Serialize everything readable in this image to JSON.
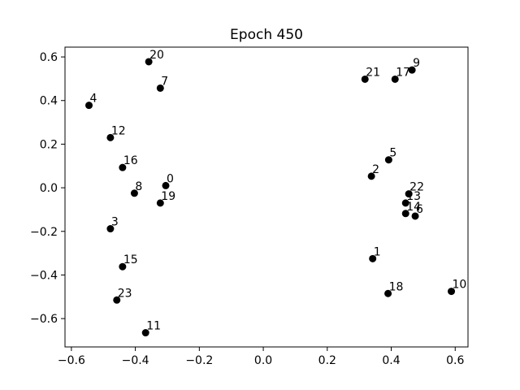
{
  "chart_data": {
    "type": "scatter",
    "title": "Epoch 450",
    "xlabel": "",
    "ylabel": "",
    "xlim": [
      -0.62,
      0.64
    ],
    "ylim": [
      -0.73,
      0.645
    ],
    "x_ticks": [
      -0.6,
      -0.4,
      -0.2,
      0.0,
      0.2,
      0.4,
      0.6
    ],
    "x_tick_labels": [
      "−0.6",
      "−0.4",
      "−0.2",
      "0.0",
      "0.2",
      "0.4",
      "0.6"
    ],
    "y_ticks": [
      -0.6,
      -0.4,
      -0.2,
      0.0,
      0.2,
      0.4,
      0.6
    ],
    "y_tick_labels": [
      "−0.6",
      "−0.4",
      "−0.2",
      "0.0",
      "0.2",
      "0.4",
      "0.6"
    ],
    "grid": false,
    "marker_color": "#000000",
    "points": [
      {
        "label": "0",
        "x": -0.305,
        "y": 0.01
      },
      {
        "label": "1",
        "x": 0.342,
        "y": -0.325
      },
      {
        "label": "2",
        "x": 0.338,
        "y": 0.053
      },
      {
        "label": "3",
        "x": -0.478,
        "y": -0.188
      },
      {
        "label": "4",
        "x": -0.545,
        "y": 0.378
      },
      {
        "label": "5",
        "x": 0.392,
        "y": 0.128
      },
      {
        "label": "6",
        "x": 0.475,
        "y": -0.13
      },
      {
        "label": "7",
        "x": -0.322,
        "y": 0.457
      },
      {
        "label": "8",
        "x": -0.403,
        "y": -0.025
      },
      {
        "label": "9",
        "x": 0.465,
        "y": 0.54
      },
      {
        "label": "10",
        "x": 0.588,
        "y": -0.475
      },
      {
        "label": "11",
        "x": -0.368,
        "y": -0.665
      },
      {
        "label": "12",
        "x": -0.478,
        "y": 0.23
      },
      {
        "label": "13",
        "x": 0.445,
        "y": -0.07
      },
      {
        "label": "14",
        "x": 0.445,
        "y": -0.118
      },
      {
        "label": "15",
        "x": -0.44,
        "y": -0.362
      },
      {
        "label": "16",
        "x": -0.44,
        "y": 0.093
      },
      {
        "label": "17",
        "x": 0.412,
        "y": 0.498
      },
      {
        "label": "18",
        "x": 0.39,
        "y": -0.485
      },
      {
        "label": "19",
        "x": -0.322,
        "y": -0.07
      },
      {
        "label": "20",
        "x": -0.358,
        "y": 0.578
      },
      {
        "label": "21",
        "x": 0.318,
        "y": 0.498
      },
      {
        "label": "22",
        "x": 0.455,
        "y": -0.028
      },
      {
        "label": "23",
        "x": -0.458,
        "y": -0.515
      }
    ]
  }
}
